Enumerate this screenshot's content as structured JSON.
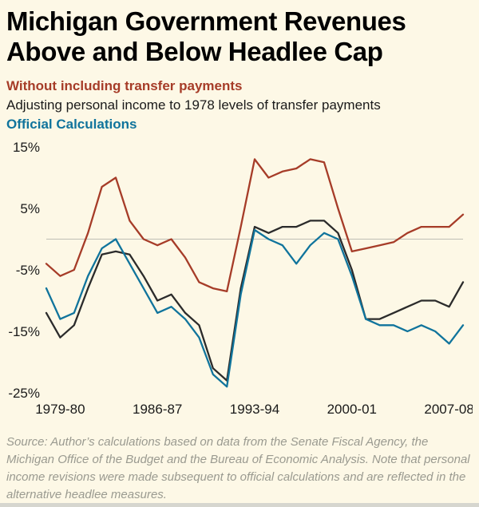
{
  "title": {
    "line1": "Michigan Government Revenues",
    "line2": "Above and Below Headlee Cap"
  },
  "legend": [
    {
      "label": "Without including transfer payments",
      "color": "#a63c28",
      "bold": true
    },
    {
      "label": "Adjusting personal income to 1978 levels of transfer payments",
      "color": "#1a1a1a",
      "bold": false
    },
    {
      "label": "Official Calculations",
      "color": "#10749c",
      "bold": true
    }
  ],
  "chart_data": {
    "type": "line",
    "categories": [
      "1978-79",
      "1979-80",
      "1980-81",
      "1981-82",
      "1982-83",
      "1983-84",
      "1984-85",
      "1985-86",
      "1986-87",
      "1987-88",
      "1988-89",
      "1989-90",
      "1990-91",
      "1991-92",
      "1992-93",
      "1993-94",
      "1994-95",
      "1995-96",
      "1996-97",
      "1997-98",
      "1998-99",
      "1999-00",
      "2000-01",
      "2001-02",
      "2002-03",
      "2003-04",
      "2004-05",
      "2005-06",
      "2006-07",
      "2007-08",
      "2008-09"
    ],
    "series": [
      {
        "name": "Without including transfer payments",
        "color": "#a63c28",
        "values": [
          -4,
          -6,
          -5,
          1,
          8.5,
          10,
          3,
          0,
          -1,
          0,
          -3,
          -7,
          -8,
          -8.5,
          2,
          13,
          10,
          11,
          11.5,
          13,
          12.5,
          5,
          -2,
          -1.5,
          -1,
          -0.5,
          1,
          2,
          2,
          2,
          4
        ]
      },
      {
        "name": "Adjusting personal income to 1978 levels of transfer payments",
        "color": "#2b2b2b",
        "values": [
          -12,
          -16,
          -14,
          -8,
          -2.5,
          -2,
          -2.5,
          -6,
          -10,
          -9,
          -12,
          -14,
          -21,
          -23,
          -8,
          2,
          1,
          2,
          2,
          3,
          3,
          1,
          -5,
          -13,
          -13,
          -12,
          -11,
          -10,
          -10,
          -11,
          -7
        ]
      },
      {
        "name": "Official Calculations",
        "color": "#10749c",
        "values": [
          -8,
          -13,
          -12,
          -6,
          -1.5,
          0,
          -4,
          -8,
          -12,
          -11,
          -13,
          -16,
          -22,
          -24,
          -9,
          1.5,
          0,
          -1,
          -4,
          -1,
          1,
          0,
          -6,
          -13,
          -14,
          -14,
          -15,
          -14,
          -15,
          -17,
          -14
        ]
      }
    ],
    "ylim": [
      -25,
      15
    ],
    "yticks": [
      {
        "value": 15,
        "label": "15%"
      },
      {
        "value": 5,
        "label": "5%"
      },
      {
        "value": -5,
        "label": "-5%"
      },
      {
        "value": -15,
        "label": "-15%"
      },
      {
        "value": -25,
        "label": "-25%"
      }
    ],
    "xticks": [
      {
        "index": 1,
        "label": "1979-80"
      },
      {
        "index": 8,
        "label": "1986-87"
      },
      {
        "index": 15,
        "label": "1993-94"
      },
      {
        "index": 22,
        "label": "2000-01"
      },
      {
        "index": 29,
        "label": "2007-08"
      }
    ],
    "gridlines": [
      0
    ],
    "legend_position": "top",
    "grid": "zero-line-only"
  },
  "source": "Source: Author’s calculations based on data from the Senate Fiscal Agency, the Michigan Office of the Budget and the Bureau of Economic Analysis. Note that personal income revisions were made subsequent to official calculations and are reflected in the alternative headlee measures.",
  "colors": {
    "background": "#fdf8e6",
    "gridline": "#bfbfb6",
    "axis_text": "#1a1a1a",
    "source_text": "#9a9a90",
    "footer_bar": "#d6d6cf"
  }
}
